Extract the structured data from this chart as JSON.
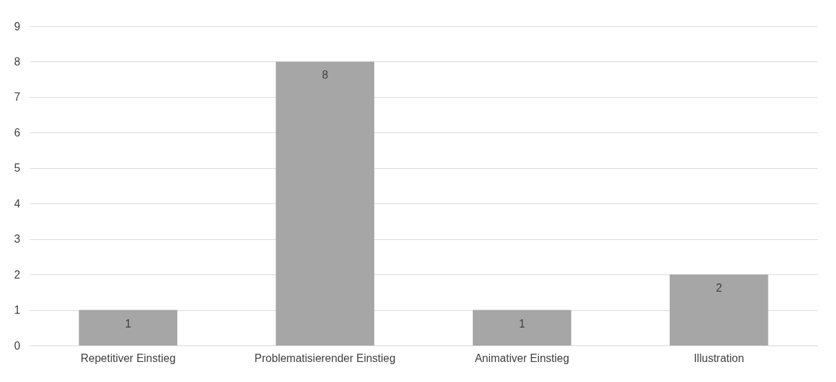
{
  "chart_data": {
    "type": "bar",
    "categories": [
      "Repetitiver Einstieg",
      "Problematisierender Einstieg",
      "Animativer Einstieg",
      "Illustration"
    ],
    "values": [
      1,
      8,
      1,
      2
    ],
    "color": "#a6a6a6",
    "ylim": [
      0,
      9
    ],
    "yticks": [
      0,
      1,
      2,
      3,
      4,
      5,
      6,
      7,
      8,
      9
    ],
    "grid": "y",
    "data_labels": true
  }
}
